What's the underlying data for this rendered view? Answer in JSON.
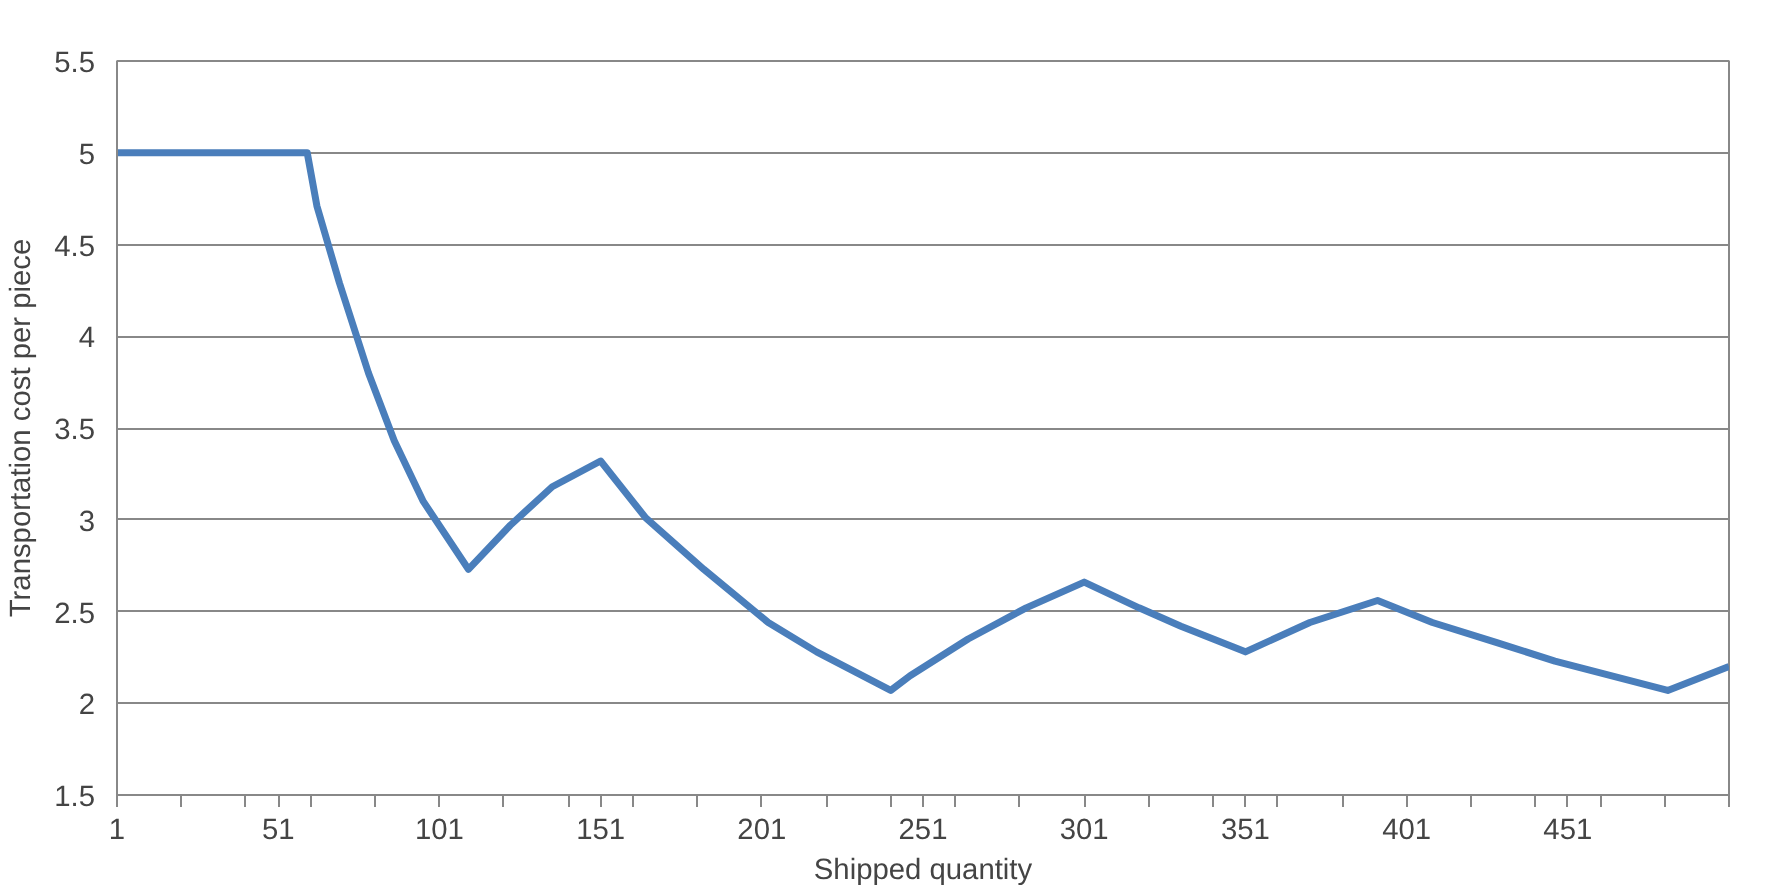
{
  "chart_data": {
    "type": "line",
    "xlabel": "Shipped quantity",
    "ylabel": "Transportation cost per piece",
    "x": [
      1,
      60,
      63,
      70,
      79,
      87,
      96,
      110,
      123,
      136,
      151,
      165,
      183,
      203,
      218,
      241,
      247,
      265,
      283,
      301,
      318,
      331,
      351,
      371,
      392,
      409,
      429,
      447,
      482,
      501
    ],
    "series": [
      {
        "color": "#4a7ebb",
        "values": [
          5.0,
          5.0,
          4.71,
          4.29,
          3.8,
          3.43,
          3.1,
          2.73,
          2.97,
          3.18,
          3.32,
          3.01,
          2.73,
          2.44,
          2.28,
          2.07,
          2.15,
          2.35,
          2.52,
          2.66,
          2.52,
          2.42,
          2.28,
          2.44,
          2.56,
          2.44,
          2.33,
          2.23,
          2.07,
          2.2
        ]
      }
    ],
    "xlim": [
      1,
      501
    ],
    "xticks": [
      1,
      {
        "value": 21,
        "label": null
      },
      {
        "value": 41,
        "label": null
      },
      51,
      {
        "value": 61,
        "label": null
      },
      {
        "value": 81,
        "label": null
      },
      101,
      {
        "value": 121,
        "label": null
      },
      {
        "value": 141,
        "label": null
      },
      151,
      {
        "value": 161,
        "label": null
      },
      {
        "value": 181,
        "label": null
      },
      201,
      {
        "value": 221,
        "label": null
      },
      {
        "value": 241,
        "label": null
      },
      251,
      {
        "value": 261,
        "label": null
      },
      {
        "value": 281,
        "label": null
      },
      301,
      {
        "value": 321,
        "label": null
      },
      {
        "value": 341,
        "label": null
      },
      351,
      {
        "value": 361,
        "label": null
      },
      {
        "value": 381,
        "label": null
      },
      401,
      {
        "value": 421,
        "label": null
      },
      {
        "value": 441,
        "label": null
      },
      451,
      {
        "value": 461,
        "label": null
      },
      {
        "value": 481,
        "label": null
      },
      {
        "value": 501,
        "label": null
      }
    ],
    "ylim": [
      1.5,
      5.5
    ],
    "yticks": [
      1.5,
      2,
      2.5,
      3,
      3.5,
      4,
      4.5,
      5,
      5.5
    ],
    "grid": "y",
    "marker": "none",
    "line_style": "solid"
  }
}
